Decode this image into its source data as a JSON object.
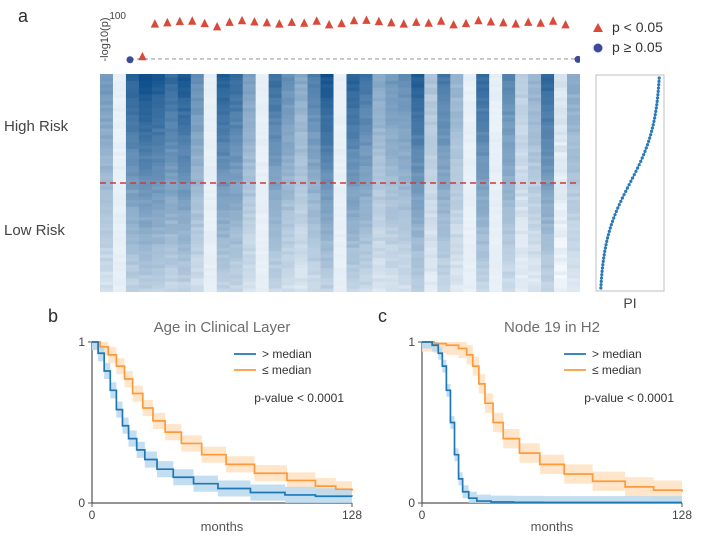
{
  "figure": {
    "panel_labels": {
      "a": "a",
      "b": "b",
      "c": "c"
    },
    "colors": {
      "sig_triangle": "#d94a3a",
      "nonsig_circle": "#3b4a9a",
      "dashed_gray": "#a0a0a0",
      "dashed_red": "#cc3a3a",
      "curve_blue": "#1f77b4",
      "curve_orange": "#ff9a3c",
      "ci_blue": "#b9d8ee",
      "ci_orange": "#ffe0c0",
      "axis": "#555555",
      "text": "#333333",
      "title_gray": "#6d6d6d",
      "heat_dark": "#0e4f8b",
      "heat_light": "#f4f9fd",
      "pi_point": "#2a7ab8"
    },
    "a": {
      "scatter": {
        "ylabel": "-log10(p)",
        "ymax": 100,
        "ytick": 100,
        "dash_y": 5,
        "points": [
          {
            "x": 0,
            "y": 3,
            "sig": false
          },
          {
            "x": 1,
            "y": 12,
            "sig": true
          },
          {
            "x": 2,
            "y": 92,
            "sig": true
          },
          {
            "x": 3,
            "y": 95,
            "sig": true
          },
          {
            "x": 4,
            "y": 98,
            "sig": true
          },
          {
            "x": 5,
            "y": 99,
            "sig": true
          },
          {
            "x": 6,
            "y": 93,
            "sig": true
          },
          {
            "x": 7,
            "y": 85,
            "sig": true
          },
          {
            "x": 8,
            "y": 96,
            "sig": true
          },
          {
            "x": 9,
            "y": 100,
            "sig": true
          },
          {
            "x": 10,
            "y": 97,
            "sig": true
          },
          {
            "x": 11,
            "y": 95,
            "sig": true
          },
          {
            "x": 12,
            "y": 92,
            "sig": true
          },
          {
            "x": 13,
            "y": 96,
            "sig": true
          },
          {
            "x": 14,
            "y": 94,
            "sig": true
          },
          {
            "x": 15,
            "y": 99,
            "sig": true
          },
          {
            "x": 16,
            "y": 90,
            "sig": true
          },
          {
            "x": 17,
            "y": 93,
            "sig": true
          },
          {
            "x": 18,
            "y": 100,
            "sig": true
          },
          {
            "x": 19,
            "y": 101,
            "sig": true
          },
          {
            "x": 20,
            "y": 98,
            "sig": true
          },
          {
            "x": 21,
            "y": 95,
            "sig": true
          },
          {
            "x": 22,
            "y": 92,
            "sig": true
          },
          {
            "x": 23,
            "y": 96,
            "sig": true
          },
          {
            "x": 24,
            "y": 94,
            "sig": true
          },
          {
            "x": 25,
            "y": 99,
            "sig": true
          },
          {
            "x": 26,
            "y": 90,
            "sig": true
          },
          {
            "x": 27,
            "y": 93,
            "sig": true
          },
          {
            "x": 28,
            "y": 100,
            "sig": true
          },
          {
            "x": 29,
            "y": 97,
            "sig": true
          },
          {
            "x": 30,
            "y": 95,
            "sig": true
          },
          {
            "x": 31,
            "y": 92,
            "sig": true
          },
          {
            "x": 32,
            "y": 96,
            "sig": true
          },
          {
            "x": 33,
            "y": 94,
            "sig": true
          },
          {
            "x": 34,
            "y": 99,
            "sig": true
          },
          {
            "x": 35,
            "y": 90,
            "sig": true
          },
          {
            "x": 36,
            "y": 4,
            "sig": false
          }
        ],
        "legend": {
          "sig": "p  <  0.05",
          "nonsig": "p  ≥  0.05"
        }
      },
      "heatmap": {
        "high_label": "High Risk",
        "low_label": "Low Risk",
        "n_cols": 37,
        "n_rows": 64,
        "col_intensity": [
          0.55,
          0.05,
          0.85,
          0.95,
          0.9,
          0.8,
          0.9,
          0.6,
          0.1,
          0.88,
          0.8,
          0.5,
          0.05,
          0.78,
          0.6,
          0.45,
          0.68,
          0.92,
          0.05,
          0.85,
          0.75,
          0.45,
          0.55,
          0.6,
          0.88,
          0.3,
          0.72,
          0.4,
          0.1,
          0.8,
          0.1,
          0.65,
          0.25,
          0.4,
          0.82,
          0.12,
          0.45
        ]
      },
      "pi": {
        "label": "PI",
        "n_points": 64,
        "xrange": [
          -2,
          3
        ]
      }
    },
    "b": {
      "title": "Age in Clinical Layer",
      "xlabel": "months",
      "xmax": 128,
      "ymax": 1,
      "xticks": [
        0,
        128
      ],
      "yticks": [
        0,
        1
      ],
      "pvalue": "p-value < 0.0001",
      "legend": {
        "gt": ">  median",
        "lte": "≤  median"
      },
      "curve_gt": [
        [
          0,
          1.0
        ],
        [
          3,
          0.93
        ],
        [
          6,
          0.82
        ],
        [
          9,
          0.7
        ],
        [
          12,
          0.58
        ],
        [
          15,
          0.48
        ],
        [
          18,
          0.4
        ],
        [
          22,
          0.33
        ],
        [
          26,
          0.27
        ],
        [
          32,
          0.21
        ],
        [
          40,
          0.16
        ],
        [
          50,
          0.12
        ],
        [
          62,
          0.09
        ],
        [
          78,
          0.065
        ],
        [
          95,
          0.05
        ],
        [
          110,
          0.042
        ],
        [
          128,
          0.04
        ]
      ],
      "curve_lte": [
        [
          0,
          1.0
        ],
        [
          4,
          0.97
        ],
        [
          8,
          0.92
        ],
        [
          12,
          0.85
        ],
        [
          16,
          0.77
        ],
        [
          20,
          0.68
        ],
        [
          25,
          0.59
        ],
        [
          30,
          0.51
        ],
        [
          36,
          0.44
        ],
        [
          44,
          0.37
        ],
        [
          54,
          0.3
        ],
        [
          66,
          0.24
        ],
        [
          80,
          0.185
        ],
        [
          96,
          0.14
        ],
        [
          110,
          0.105
        ],
        [
          120,
          0.085
        ],
        [
          128,
          0.075
        ]
      ],
      "ci_width_gt": 0.05,
      "ci_width_lte": 0.05
    },
    "c": {
      "title": "Node 19 in H2",
      "xlabel": "months",
      "xmax": 128,
      "ymax": 1,
      "xticks": [
        0,
        128
      ],
      "yticks": [
        0,
        1
      ],
      "pvalue": "p-value < 0.0001",
      "legend": {
        "gt": ">  median",
        "lte": "≤  median"
      },
      "curve_gt": [
        [
          0,
          1.0
        ],
        [
          5,
          0.98
        ],
        [
          8,
          0.93
        ],
        [
          10,
          0.85
        ],
        [
          12,
          0.7
        ],
        [
          14,
          0.5
        ],
        [
          16,
          0.3
        ],
        [
          18,
          0.15
        ],
        [
          20,
          0.07
        ],
        [
          23,
          0.03
        ],
        [
          27,
          0.012
        ],
        [
          34,
          0.006
        ],
        [
          45,
          0.004
        ],
        [
          60,
          0.003
        ],
        [
          80,
          0.003
        ],
        [
          128,
          0.003
        ]
      ],
      "curve_lte": [
        [
          0,
          1.0
        ],
        [
          6,
          0.99
        ],
        [
          12,
          0.98
        ],
        [
          18,
          0.96
        ],
        [
          22,
          0.92
        ],
        [
          25,
          0.85
        ],
        [
          28,
          0.74
        ],
        [
          31,
          0.62
        ],
        [
          35,
          0.5
        ],
        [
          40,
          0.4
        ],
        [
          48,
          0.31
        ],
        [
          58,
          0.24
        ],
        [
          70,
          0.18
        ],
        [
          84,
          0.135
        ],
        [
          100,
          0.1
        ],
        [
          114,
          0.08
        ],
        [
          128,
          0.07
        ]
      ],
      "ci_width_gt": 0.04,
      "ci_width_lte": 0.06
    }
  }
}
